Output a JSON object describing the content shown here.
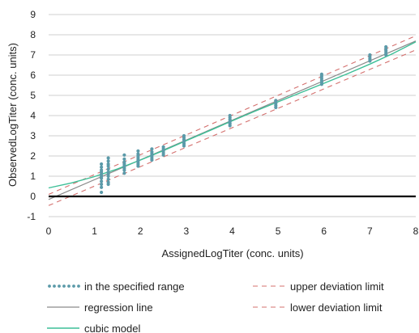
{
  "chart_data": {
    "type": "scatter",
    "xlabel": "AssignedLogTiter (conc. units)",
    "ylabel": "ObservedLogTiter (conc. units)",
    "xlim": [
      0,
      8
    ],
    "ylim": [
      -1,
      9
    ],
    "x_ticks": [
      0,
      1,
      2,
      3,
      4,
      5,
      6,
      7,
      8
    ],
    "y_ticks": [
      -1,
      0,
      1,
      2,
      3,
      4,
      5,
      6,
      7,
      8,
      9
    ],
    "grid": "horizontal",
    "legend_position": "bottom",
    "colors": {
      "points": "#5b9aa9",
      "regression": "#8a8a8a",
      "deviation": "#d4706e",
      "cubic": "#3dbf97",
      "zero_line": "#000000",
      "grid": "#cfcfcf"
    },
    "series": [
      {
        "name": "in the specified range",
        "kind": "points",
        "points": [
          [
            1.15,
            0.2
          ],
          [
            1.15,
            0.45
          ],
          [
            1.15,
            0.6
          ],
          [
            1.15,
            0.75
          ],
          [
            1.15,
            0.9
          ],
          [
            1.15,
            1.0
          ],
          [
            1.15,
            1.1
          ],
          [
            1.15,
            1.2
          ],
          [
            1.15,
            1.3
          ],
          [
            1.15,
            1.45
          ],
          [
            1.15,
            1.6
          ],
          [
            1.3,
            0.6
          ],
          [
            1.3,
            0.7
          ],
          [
            1.3,
            0.85
          ],
          [
            1.3,
            1.0
          ],
          [
            1.3,
            1.1
          ],
          [
            1.3,
            1.2
          ],
          [
            1.3,
            1.35
          ],
          [
            1.3,
            1.5
          ],
          [
            1.3,
            1.6
          ],
          [
            1.3,
            1.75
          ],
          [
            1.3,
            1.9
          ],
          [
            1.65,
            1.15
          ],
          [
            1.65,
            1.3
          ],
          [
            1.65,
            1.4
          ],
          [
            1.65,
            1.5
          ],
          [
            1.65,
            1.6
          ],
          [
            1.65,
            1.7
          ],
          [
            1.65,
            1.85
          ],
          [
            1.65,
            2.05
          ],
          [
            1.95,
            1.5
          ],
          [
            1.95,
            1.6
          ],
          [
            1.95,
            1.7
          ],
          [
            1.95,
            1.8
          ],
          [
            1.95,
            1.9
          ],
          [
            1.95,
            2.0
          ],
          [
            1.95,
            2.1
          ],
          [
            1.95,
            2.25
          ],
          [
            2.25,
            1.8
          ],
          [
            2.25,
            1.9
          ],
          [
            2.25,
            2.0
          ],
          [
            2.25,
            2.1
          ],
          [
            2.25,
            2.2
          ],
          [
            2.25,
            2.35
          ],
          [
            2.5,
            2.05
          ],
          [
            2.5,
            2.15
          ],
          [
            2.5,
            2.25
          ],
          [
            2.5,
            2.35
          ],
          [
            2.5,
            2.45
          ],
          [
            2.95,
            2.5
          ],
          [
            2.95,
            2.6
          ],
          [
            2.95,
            2.7
          ],
          [
            2.95,
            2.8
          ],
          [
            2.95,
            2.9
          ],
          [
            2.95,
            3.0
          ],
          [
            3.95,
            3.5
          ],
          [
            3.95,
            3.6
          ],
          [
            3.95,
            3.7
          ],
          [
            3.95,
            3.8
          ],
          [
            3.95,
            3.9
          ],
          [
            3.95,
            4.0
          ],
          [
            4.95,
            4.4
          ],
          [
            4.95,
            4.5
          ],
          [
            4.95,
            4.6
          ],
          [
            4.95,
            4.7
          ],
          [
            4.95,
            4.75
          ],
          [
            5.95,
            5.55
          ],
          [
            5.95,
            5.65
          ],
          [
            5.95,
            5.75
          ],
          [
            5.95,
            5.85
          ],
          [
            5.95,
            5.95
          ],
          [
            5.95,
            6.05
          ],
          [
            7.0,
            6.7
          ],
          [
            7.0,
            6.8
          ],
          [
            7.0,
            6.9
          ],
          [
            7.0,
            7.0
          ],
          [
            7.35,
            7.0
          ],
          [
            7.35,
            7.1
          ],
          [
            7.35,
            7.2
          ],
          [
            7.35,
            7.3
          ],
          [
            7.35,
            7.4
          ]
        ]
      },
      {
        "name": "regression line",
        "kind": "line",
        "x": [
          0,
          8
        ],
        "y": [
          -0.15,
          7.69
        ]
      },
      {
        "name": "upper deviation limit",
        "kind": "dashed",
        "x": [
          0,
          8
        ],
        "y": [
          0.1,
          7.95
        ]
      },
      {
        "name": "lower deviation limit",
        "kind": "dashed",
        "x": [
          0,
          8
        ],
        "y": [
          -0.45,
          7.25
        ]
      },
      {
        "name": "cubic model",
        "kind": "curve",
        "x": [
          0,
          0.5,
          1,
          1.5,
          2,
          2.5,
          3,
          3.5,
          4,
          4.5,
          5,
          5.5,
          6,
          6.5,
          7,
          7.5,
          8
        ],
        "y": [
          0.42,
          0.67,
          0.98,
          1.36,
          1.8,
          2.27,
          2.76,
          3.25,
          3.74,
          4.22,
          4.68,
          5.14,
          5.6,
          6.06,
          6.55,
          7.07,
          7.65
        ]
      }
    ]
  }
}
